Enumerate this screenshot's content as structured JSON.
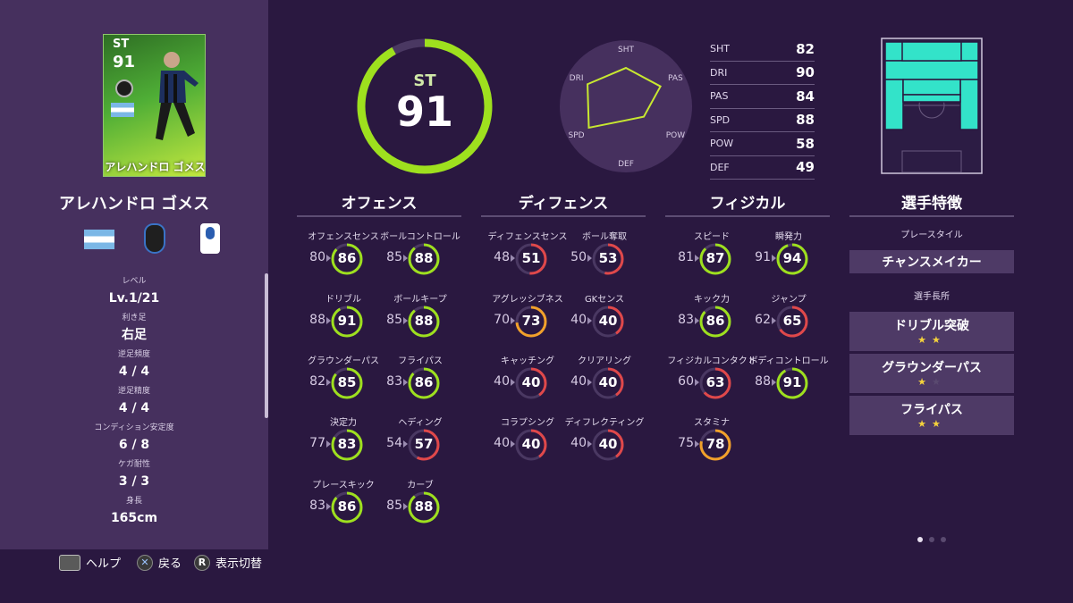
{
  "player": {
    "card_position": "ST",
    "card_rating": "91",
    "card_name": "アレハンドロ ゴメス",
    "name": "アレハンドロ ゴメス",
    "position": "ST",
    "overall": "91"
  },
  "profile": [
    {
      "label": "レベル",
      "value": "Lv.1/21"
    },
    {
      "label": "利き足",
      "value": "右足"
    },
    {
      "label": "逆足頻度",
      "value": "4 / 4"
    },
    {
      "label": "逆足精度",
      "value": "4 / 4"
    },
    {
      "label": "コンディション安定度",
      "value": "6 / 8"
    },
    {
      "label": "ケガ耐性",
      "value": "3 / 3"
    },
    {
      "label": "身長",
      "value": "165cm"
    }
  ],
  "summary_stats": [
    {
      "key": "SHT",
      "value": "82"
    },
    {
      "key": "DRI",
      "value": "90"
    },
    {
      "key": "PAS",
      "value": "84"
    },
    {
      "key": "SPD",
      "value": "88"
    },
    {
      "key": "POW",
      "value": "58"
    },
    {
      "key": "DEF",
      "value": "49"
    }
  ],
  "radar": {
    "axes": [
      "SHT",
      "PAS",
      "POW",
      "DEF",
      "SPD",
      "DRI"
    ],
    "values": [
      82,
      84,
      58,
      49,
      88,
      90
    ]
  },
  "columns": [
    {
      "title": "オフェンス",
      "stats": [
        {
          "name": "オフェンスセンス",
          "base": "80",
          "value": "86"
        },
        {
          "name": "ボールコントロール",
          "base": "85",
          "value": "88"
        },
        {
          "name": "ドリブル",
          "base": "88",
          "value": "91"
        },
        {
          "name": "ボールキープ",
          "base": "85",
          "value": "88"
        },
        {
          "name": "グラウンダーパス",
          "base": "82",
          "value": "85"
        },
        {
          "name": "フライパス",
          "base": "83",
          "value": "86"
        },
        {
          "name": "決定力",
          "base": "77",
          "value": "83"
        },
        {
          "name": "ヘディング",
          "base": "54",
          "value": "57"
        },
        {
          "name": "プレースキック",
          "base": "83",
          "value": "86"
        },
        {
          "name": "カーブ",
          "base": "85",
          "value": "88"
        }
      ]
    },
    {
      "title": "ディフェンス",
      "stats": [
        {
          "name": "ディフェンスセンス",
          "base": "48",
          "value": "51"
        },
        {
          "name": "ボール奪取",
          "base": "50",
          "value": "53"
        },
        {
          "name": "アグレッシブネス",
          "base": "70",
          "value": "73"
        },
        {
          "name": "GKセンス",
          "base": "40",
          "value": "40"
        },
        {
          "name": "キャッチング",
          "base": "40",
          "value": "40"
        },
        {
          "name": "クリアリング",
          "base": "40",
          "value": "40"
        },
        {
          "name": "コラプシング",
          "base": "40",
          "value": "40"
        },
        {
          "name": "ディフレクティング",
          "base": "40",
          "value": "40"
        }
      ]
    },
    {
      "title": "フィジカル",
      "stats": [
        {
          "name": "スピード",
          "base": "81",
          "value": "87"
        },
        {
          "name": "瞬発力",
          "base": "91",
          "value": "94"
        },
        {
          "name": "キック力",
          "base": "83",
          "value": "86"
        },
        {
          "name": "ジャンプ",
          "base": "62",
          "value": "65"
        },
        {
          "name": "フィジカルコンタクト",
          "base": "60",
          "value": "63"
        },
        {
          "name": "ボディコントロール",
          "base": "88",
          "value": "91"
        },
        {
          "name": "スタミナ",
          "base": "75",
          "value": "78"
        }
      ]
    }
  ],
  "traits": {
    "title": "選手特徴",
    "playstyle_label": "プレースタイル",
    "playstyle": "チャンスメイカー",
    "strengths_label": "選手長所",
    "strengths": [
      {
        "name": "ドリブル突破",
        "stars": 2
      },
      {
        "name": "グラウンダーパス",
        "stars": 1
      },
      {
        "name": "フライパス",
        "stars": 2
      }
    ]
  },
  "hints": {
    "help": "ヘルプ",
    "back": "戻る",
    "toggle": "表示切替",
    "toggle_button": "R"
  },
  "colors": {
    "high": "#9ee01e",
    "mid": "#f2a12a",
    "low": "#e0484a",
    "track": "#4a3862",
    "accent_field": "#33e3c9"
  },
  "pager": {
    "pages": 3,
    "current": 1
  }
}
